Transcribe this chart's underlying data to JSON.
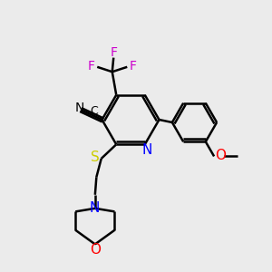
{
  "bg_color": "#ebebeb",
  "bond_color": "#000000",
  "line_width": 1.8,
  "figsize": [
    3.0,
    3.0
  ],
  "dpi": 100,
  "colors": {
    "N": "#0000ff",
    "O": "#ff0000",
    "S": "#cccc00",
    "F": "#cc00cc",
    "C": "#000000"
  }
}
